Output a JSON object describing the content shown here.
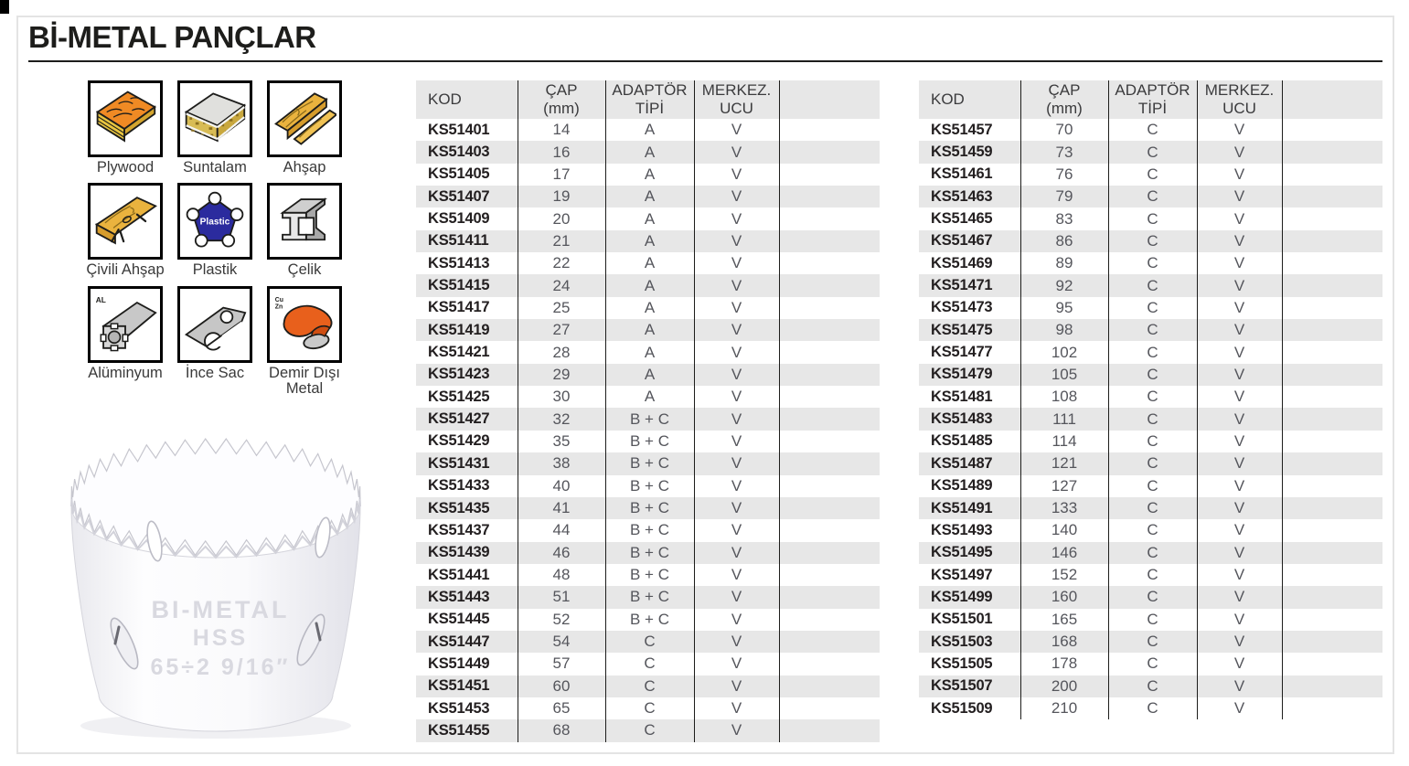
{
  "title": "Bİ-METAL PANÇLAR",
  "materials": [
    {
      "label": "Plywood",
      "icon": "plywood-icon"
    },
    {
      "label": "Suntalam",
      "icon": "chipboard-icon"
    },
    {
      "label": "Ahşap",
      "icon": "wood-icon"
    },
    {
      "label": "Çivili Ahşap",
      "icon": "nailed-wood-icon"
    },
    {
      "label": "Plastik",
      "icon": "plastic-icon",
      "badge": "Plastic"
    },
    {
      "label": "Çelik",
      "icon": "steel-beam-icon"
    },
    {
      "label": "Alüminyum",
      "icon": "aluminum-profile-icon",
      "badge": "AL"
    },
    {
      "label": "İnce Sac",
      "icon": "thin-sheet-icon"
    },
    {
      "label": "Demir Dışı Metal",
      "icon": "non-ferrous-metal-icon",
      "badge1": "Cu",
      "badge2": "Zn"
    }
  ],
  "columns": {
    "kod": "KOD",
    "cap_line1": "ÇAP",
    "cap_line2": "(mm)",
    "adaptor_line1": "ADAPTÖR",
    "adaptor_line2": "TİPİ",
    "merkez_line1": "MERKEZ.",
    "merkez_line2": "UCU"
  },
  "tables": [
    {
      "rows": [
        [
          "KS51401",
          "14",
          "A",
          "V"
        ],
        [
          "KS51403",
          "16",
          "A",
          "V"
        ],
        [
          "KS51405",
          "17",
          "A",
          "V"
        ],
        [
          "KS51407",
          "19",
          "A",
          "V"
        ],
        [
          "KS51409",
          "20",
          "A",
          "V"
        ],
        [
          "KS51411",
          "21",
          "A",
          "V"
        ],
        [
          "KS51413",
          "22",
          "A",
          "V"
        ],
        [
          "KS51415",
          "24",
          "A",
          "V"
        ],
        [
          "KS51417",
          "25",
          "A",
          "V"
        ],
        [
          "KS51419",
          "27",
          "A",
          "V"
        ],
        [
          "KS51421",
          "28",
          "A",
          "V"
        ],
        [
          "KS51423",
          "29",
          "A",
          "V"
        ],
        [
          "KS51425",
          "30",
          "A",
          "V"
        ],
        [
          "KS51427",
          "32",
          "B + C",
          "V"
        ],
        [
          "KS51429",
          "35",
          "B + C",
          "V"
        ],
        [
          "KS51431",
          "38",
          "B + C",
          "V"
        ],
        [
          "KS51433",
          "40",
          "B + C",
          "V"
        ],
        [
          "KS51435",
          "41",
          "B + C",
          "V"
        ],
        [
          "KS51437",
          "44",
          "B + C",
          "V"
        ],
        [
          "KS51439",
          "46",
          "B + C",
          "V"
        ],
        [
          "KS51441",
          "48",
          "B + C",
          "V"
        ],
        [
          "KS51443",
          "51",
          "B + C",
          "V"
        ],
        [
          "KS51445",
          "52",
          "B + C",
          "V"
        ],
        [
          "KS51447",
          "54",
          "C",
          "V"
        ],
        [
          "KS51449",
          "57",
          "C",
          "V"
        ],
        [
          "KS51451",
          "60",
          "C",
          "V"
        ],
        [
          "KS51453",
          "65",
          "C",
          "V"
        ],
        [
          "KS51455",
          "68",
          "C",
          "V"
        ]
      ]
    },
    {
      "rows": [
        [
          "KS51457",
          "70",
          "C",
          "V"
        ],
        [
          "KS51459",
          "73",
          "C",
          "V"
        ],
        [
          "KS51461",
          "76",
          "C",
          "V"
        ],
        [
          "KS51463",
          "79",
          "C",
          "V"
        ],
        [
          "KS51465",
          "83",
          "C",
          "V"
        ],
        [
          "KS51467",
          "86",
          "C",
          "V"
        ],
        [
          "KS51469",
          "89",
          "C",
          "V"
        ],
        [
          "KS51471",
          "92",
          "C",
          "V"
        ],
        [
          "KS51473",
          "95",
          "C",
          "V"
        ],
        [
          "KS51475",
          "98",
          "C",
          "V"
        ],
        [
          "KS51477",
          "102",
          "C",
          "V"
        ],
        [
          "KS51479",
          "105",
          "C",
          "V"
        ],
        [
          "KS51481",
          "108",
          "C",
          "V"
        ],
        [
          "KS51483",
          "111",
          "C",
          "V"
        ],
        [
          "KS51485",
          "114",
          "C",
          "V"
        ],
        [
          "KS51487",
          "121",
          "C",
          "V"
        ],
        [
          "KS51489",
          "127",
          "C",
          "V"
        ],
        [
          "KS51491",
          "133",
          "C",
          "V"
        ],
        [
          "KS51493",
          "140",
          "C",
          "V"
        ],
        [
          "KS51495",
          "146",
          "C",
          "V"
        ],
        [
          "KS51497",
          "152",
          "C",
          "V"
        ],
        [
          "KS51499",
          "160",
          "C",
          "V"
        ],
        [
          "KS51501",
          "165",
          "C",
          "V"
        ],
        [
          "KS51503",
          "168",
          "C",
          "V"
        ],
        [
          "KS51505",
          "178",
          "C",
          "V"
        ],
        [
          "KS51507",
          "200",
          "C",
          "V"
        ],
        [
          "KS51509",
          "210",
          "C",
          "V"
        ]
      ]
    }
  ],
  "product": {
    "emboss_line1": "BI-METAL",
    "emboss_line2": "HSS",
    "emboss_line3": "65÷2 9/16″"
  },
  "colors": {
    "stripe": "#e7e7e7",
    "table_line": "#1d1d1b",
    "title_text": "#1d1d1b",
    "code_text": "#231f20",
    "value_text": "#55565c",
    "plastic_blue": "#2b2b9e",
    "plywood_orange": "#f08a24",
    "nonferrous_orange": "#e8601c"
  }
}
